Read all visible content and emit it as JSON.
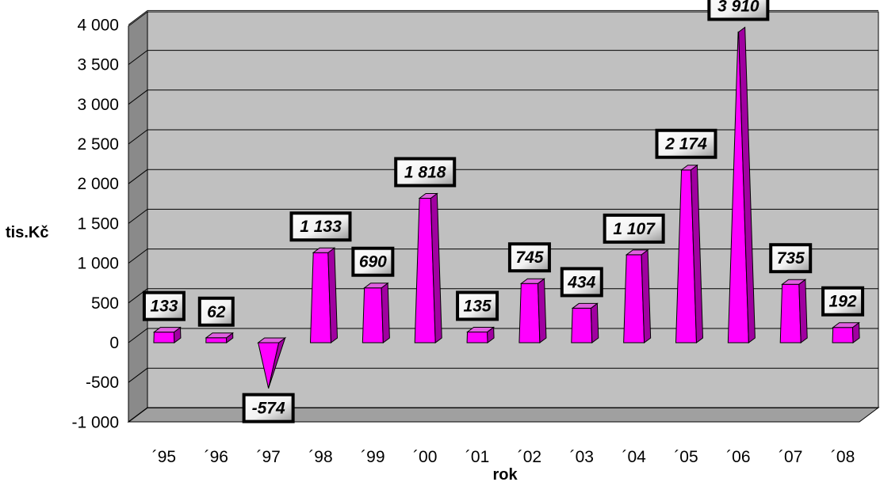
{
  "chart_data": {
    "type": "bar",
    "title": "",
    "xlabel": "rok",
    "ylabel": "tis.Kč",
    "ylim": [
      -1000,
      4000
    ],
    "y_ticks": [
      4000,
      3500,
      3000,
      2500,
      2000,
      1500,
      1000,
      500,
      0,
      -500,
      -1000
    ],
    "y_tick_labels": [
      "4 000",
      "3 500",
      "3 000",
      "2 500",
      "2 000",
      "1 500",
      "1 000",
      "500",
      "0",
      "-500",
      "-1 000"
    ],
    "categories": [
      "´95",
      "´96",
      "´97",
      "´98",
      "´99",
      "´00",
      "´01",
      "´02",
      "´03",
      "´04",
      "´05",
      "´06",
      "´07",
      "´08"
    ],
    "values": [
      133,
      62,
      -574,
      1133,
      690,
      1818,
      135,
      745,
      434,
      1107,
      2174,
      3910,
      735,
      192
    ],
    "data_labels": [
      "133",
      "62",
      "-574",
      "1 133",
      "690",
      "1 818",
      "135",
      "745",
      "434",
      "1 107",
      "2 174",
      "3 910",
      "735",
      "192"
    ],
    "grid": true,
    "legend": "none",
    "bar_color": "#ff00ff",
    "bar_side_color": "#a000a0",
    "bar_top_color": "#e060e0",
    "plot_background": "#c0c0c0",
    "wall_color": "#808080",
    "floor_color": "#9a9a9a"
  }
}
